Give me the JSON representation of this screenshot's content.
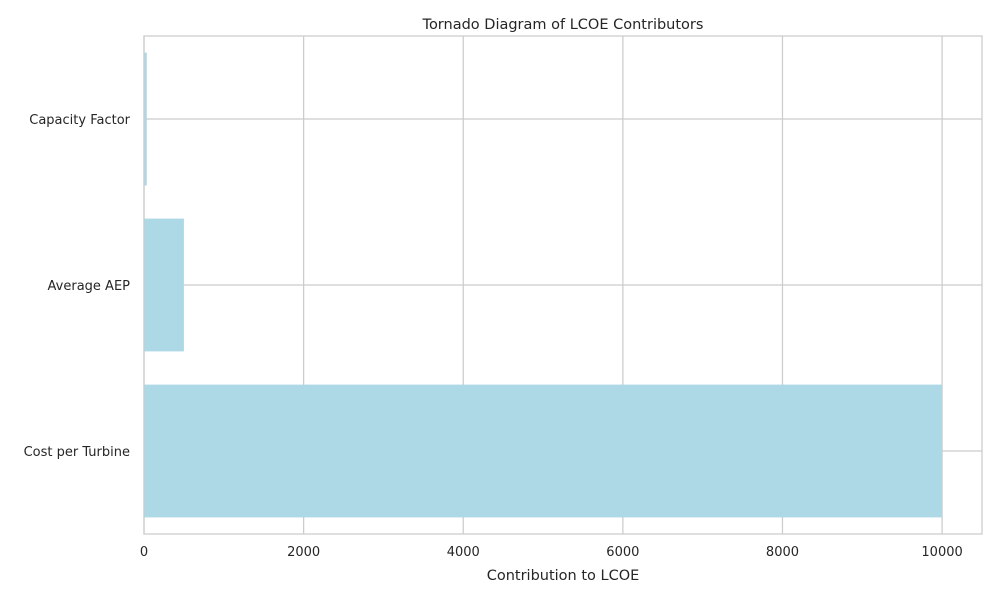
{
  "chart_data": {
    "type": "bar",
    "orientation": "horizontal",
    "title": "Tornado Diagram of LCOE Contributors",
    "xlabel": "Contribution to LCOE",
    "ylabel": "",
    "categories": [
      "Capacity Factor",
      "Average AEP",
      "Cost per Turbine"
    ],
    "values": [
      35,
      500,
      10000
    ],
    "xlim": [
      0,
      10500
    ],
    "xticks": [
      0,
      2000,
      4000,
      6000,
      8000,
      10000
    ],
    "xtick_labels": [
      "0",
      "2000",
      "4000",
      "6000",
      "8000",
      "10000"
    ],
    "grid": true,
    "bar_color": "#add8e6",
    "grid_color": "#cccccc",
    "text_color": "#262626"
  }
}
